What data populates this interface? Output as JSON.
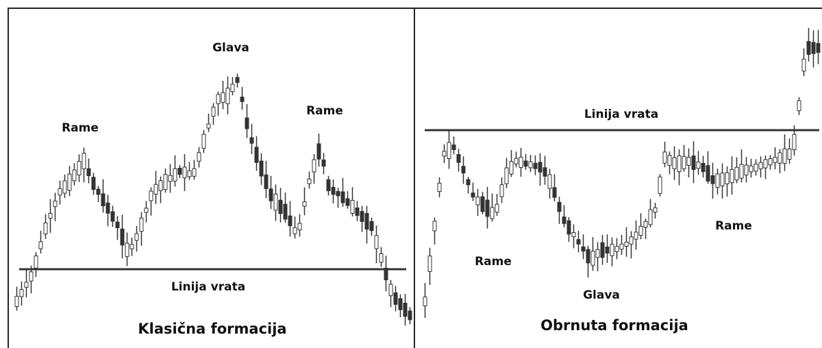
{
  "panels": [
    {
      "title": "Klasična formacija",
      "neckline": "Linija vrata",
      "head": "Glava",
      "left_shoulder": "Rame",
      "right_shoulder": "Rame"
    },
    {
      "title": "Obrnuta formacija",
      "neckline": "Linija vrata",
      "head": "Glava",
      "left_shoulder": "Rame",
      "right_shoulder": "Rame"
    }
  ]
}
